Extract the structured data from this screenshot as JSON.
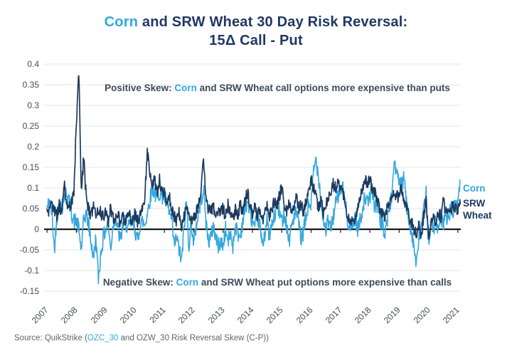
{
  "title": {
    "line1_corn": "Corn",
    "line1_rest": " and SRW Wheat 30 Day Risk Reversal:",
    "line2": "15Δ Call - Put"
  },
  "annotations": {
    "positive": {
      "prefix": "Positive Skew: ",
      "corn": "Corn",
      "rest": " and SRW Wheat call options more expensive than puts"
    },
    "negative": {
      "prefix": "Negative Skew: ",
      "corn": "Corn",
      "rest": " and SRW Wheat put options more expensive than calls"
    }
  },
  "legend": {
    "corn": "Corn",
    "wheat": "SRW Wheat"
  },
  "source": {
    "prefix": "Source: QuikStrike (",
    "link": "OZC_30",
    "suffix": " and OZW_30 Risk Reversal Skew (C-P))"
  },
  "colors": {
    "corn": "#35A7DE",
    "wheat": "#1C3A5E",
    "title_navy": "#1F3864",
    "annotation_text": "#3E4A56",
    "axis_label": "#424C58",
    "gridline": "#E3E6EA",
    "zero_axis": "#1A1A1A",
    "source_text": "#5B6670"
  },
  "chart_data": {
    "type": "line",
    "title": "Corn and SRW Wheat 30 Day Risk Reversal: 15Δ Call - Put",
    "xlabel": "",
    "ylabel": "",
    "grid": "horizontal",
    "zero_axis": true,
    "legend_position": "right-of-line-ends",
    "xlim": [
      2006.9,
      2021.1
    ],
    "ylim": [
      -0.15,
      0.4
    ],
    "x_tick_values": [
      2007,
      2008,
      2009,
      2010,
      2011,
      2012,
      2013,
      2014,
      2015,
      2016,
      2017,
      2018,
      2019,
      2020,
      2021
    ],
    "x_tick_labels": [
      "2007",
      "2008",
      "2009",
      "2010",
      "2011",
      "2012",
      "2013",
      "2014",
      "2015",
      "2016",
      "2017",
      "2018",
      "2019",
      "2020",
      "2021"
    ],
    "y_tick_values": [
      0.4,
      0.35,
      0.3,
      0.25,
      0.2,
      0.15,
      0.1,
      0.05,
      0,
      -0.05,
      -0.1,
      -0.15
    ],
    "y_tick_labels": [
      "0.4",
      "0.35",
      "0.3",
      "0.25",
      "0.2",
      "0.15",
      "0.1",
      "0.05",
      "0",
      "-0.05",
      "-0.1",
      "-0.15"
    ],
    "x_start": 2007.0,
    "x_step": 0.0833333,
    "samples_per_step": 6,
    "noise_seed": 42,
    "series": [
      {
        "name": "Corn",
        "color_key": "corn",
        "noise_amplitude": 0.02,
        "monthly_values": [
          0.05,
          0.07,
          0.04,
          -0.05,
          0.03,
          0.06,
          0.05,
          0.08,
          0.09,
          0.07,
          0.04,
          0.02,
          0.02,
          0.0,
          -0.05,
          0.02,
          0.04,
          0.01,
          -0.03,
          -0.07,
          -0.02,
          -0.12,
          -0.06,
          -0.02,
          0.0,
          0.02,
          -0.05,
          0.01,
          0.03,
          0.0,
          -0.03,
          0.01,
          0.02,
          0.0,
          0.01,
          0.02,
          0.0,
          -0.03,
          0.01,
          0.02,
          0.01,
          0.04,
          0.07,
          0.1,
          0.09,
          0.07,
          0.09,
          0.08,
          0.08,
          0.06,
          0.04,
          0.02,
          -0.04,
          -0.02,
          -0.05,
          -0.08,
          0.0,
          0.07,
          -0.04,
          0.02,
          -0.04,
          0.01,
          0.04,
          0.07,
          0.1,
          0.02,
          -0.03,
          -0.02,
          0.01,
          -0.02,
          -0.04,
          -0.03,
          -0.04,
          0.0,
          -0.03,
          -0.01,
          -0.04,
          0.01,
          -0.01,
          -0.02,
          0.02,
          0.05,
          0.07,
          0.04,
          0.02,
          0.0,
          0.03,
          0.01,
          -0.04,
          -0.01,
          0.02,
          -0.02,
          0.01,
          0.03,
          0.06,
          0.04,
          0.02,
          0.04,
          0.01,
          -0.03,
          0.01,
          0.03,
          0.04,
          0.01,
          -0.03,
          0.0,
          0.03,
          0.06,
          0.06,
          0.14,
          0.17,
          0.13,
          0.08,
          0.02,
          0.0,
          0.02,
          0.0,
          0.03,
          0.06,
          0.08,
          0.09,
          0.1,
          0.06,
          0.02,
          0.0,
          0.01,
          0.03,
          0.0,
          0.02,
          0.05,
          0.08,
          0.06,
          0.08,
          0.1,
          0.05,
          0.07,
          0.03,
          0.01,
          -0.01,
          0.02,
          0.05,
          0.08,
          0.17,
          0.13,
          0.12,
          0.1,
          0.13,
          0.06,
          0.02,
          0.0,
          -0.04,
          -0.09,
          -0.03,
          0.01,
          0.04,
          0.09,
          -0.03,
          0.01,
          0.0,
          0.02,
          -0.01,
          0.03,
          0.01,
          0.04,
          0.02,
          0.05,
          0.04,
          0.06,
          0.07,
          0.12
        ]
      },
      {
        "name": "SRW Wheat",
        "color_key": "wheat",
        "noise_amplitude": 0.015,
        "monthly_values": [
          0.05,
          0.04,
          0.06,
          0.05,
          0.03,
          0.06,
          0.04,
          0.11,
          0.07,
          0.05,
          0.06,
          0.09,
          0.26,
          0.38,
          0.1,
          0.17,
          0.08,
          0.05,
          0.03,
          0.06,
          0.03,
          0.05,
          0.04,
          0.03,
          0.04,
          0.02,
          0.05,
          0.03,
          0.02,
          0.04,
          0.01,
          0.03,
          0.02,
          0.04,
          0.03,
          0.02,
          0.04,
          0.02,
          0.03,
          0.05,
          0.08,
          0.19,
          0.14,
          0.1,
          0.12,
          0.09,
          0.12,
          0.09,
          0.09,
          0.06,
          0.08,
          0.05,
          0.03,
          0.02,
          0.04,
          0.01,
          0.03,
          0.05,
          0.04,
          0.02,
          0.03,
          0.04,
          0.06,
          0.1,
          0.17,
          0.07,
          0.05,
          0.04,
          0.06,
          0.03,
          0.05,
          0.04,
          0.05,
          0.03,
          0.06,
          0.04,
          0.02,
          0.05,
          0.03,
          0.06,
          0.04,
          0.07,
          0.09,
          0.06,
          0.04,
          0.06,
          0.03,
          0.05,
          0.02,
          0.04,
          0.06,
          0.03,
          0.05,
          0.07,
          0.06,
          0.08,
          0.1,
          0.06,
          0.04,
          0.07,
          0.05,
          0.06,
          0.08,
          0.05,
          0.06,
          0.04,
          0.07,
          0.1,
          0.12,
          0.1,
          0.08,
          0.05,
          0.07,
          0.04,
          0.06,
          0.08,
          0.09,
          0.11,
          0.1,
          0.11,
          0.1,
          0.09,
          0.06,
          0.03,
          0.01,
          0.02,
          0.03,
          0.05,
          0.07,
          0.1,
          0.12,
          0.11,
          0.12,
          0.1,
          0.09,
          0.07,
          0.05,
          0.04,
          0.03,
          0.05,
          0.06,
          0.08,
          0.09,
          0.08,
          0.08,
          0.1,
          0.07,
          0.05,
          0.03,
          0.02,
          0.0,
          -0.01,
          0.01,
          -0.02,
          0.03,
          0.07,
          -0.02,
          0.01,
          0.03,
          0.02,
          0.04,
          0.03,
          0.07,
          0.04,
          0.05,
          0.04,
          0.06,
          0.05,
          0.05,
          0.06
        ]
      }
    ]
  }
}
